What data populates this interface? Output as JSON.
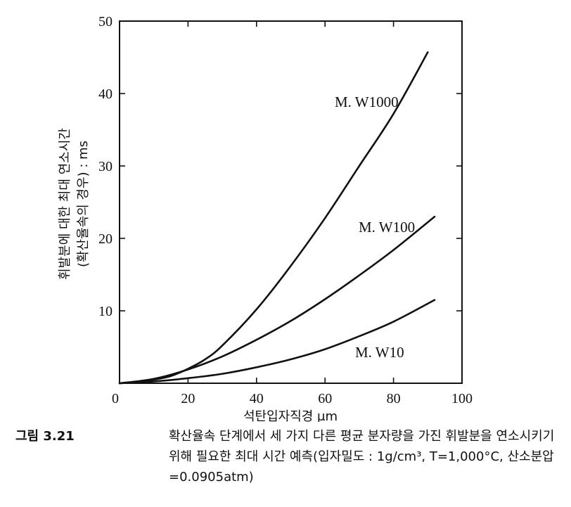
{
  "chart_data": {
    "type": "line",
    "xlabel": "석탄입자직경 μm",
    "ylabel_line1": "휘발분에 대한 최대 연소시간",
    "ylabel_line2": "(확산율속의 경우) : ms",
    "xlim": [
      0,
      100
    ],
    "ylim": [
      0,
      50
    ],
    "x_ticks": [
      0,
      20,
      40,
      60,
      80,
      100
    ],
    "y_ticks": [
      10,
      20,
      30,
      40,
      50
    ],
    "grid": false,
    "series": [
      {
        "name": "M. W1000",
        "x": [
          0,
          5,
          10,
          15,
          20,
          25,
          30,
          40,
          50,
          60,
          70,
          80,
          90
        ],
        "y": [
          0,
          0.2,
          0.5,
          1.0,
          2.0,
          3.3,
          5.2,
          10.2,
          16.2,
          22.8,
          30.0,
          37.2,
          45.7
        ]
      },
      {
        "name": "M. W100",
        "x": [
          0,
          10,
          20,
          30,
          40,
          50,
          60,
          70,
          80,
          92
        ],
        "y": [
          0,
          0.6,
          1.9,
          3.7,
          6.0,
          8.6,
          11.6,
          14.9,
          18.4,
          23.0
        ]
      },
      {
        "name": "M. W10",
        "x": [
          0,
          10,
          20,
          30,
          40,
          50,
          60,
          70,
          80,
          92
        ],
        "y": [
          0,
          0.25,
          0.7,
          1.3,
          2.2,
          3.3,
          4.7,
          6.5,
          8.5,
          11.5
        ]
      }
    ]
  },
  "caption": {
    "label": "그림 3.21",
    "text": "확산율속 단계에서 세 가지 다른 평균 분자량을 가진 휘발분을 연소시키기 위해 필요한 최대 시간 예측(입자밀도 : 1g/cm³, T=1,000°C, 산소분압=0.0905atm)"
  }
}
